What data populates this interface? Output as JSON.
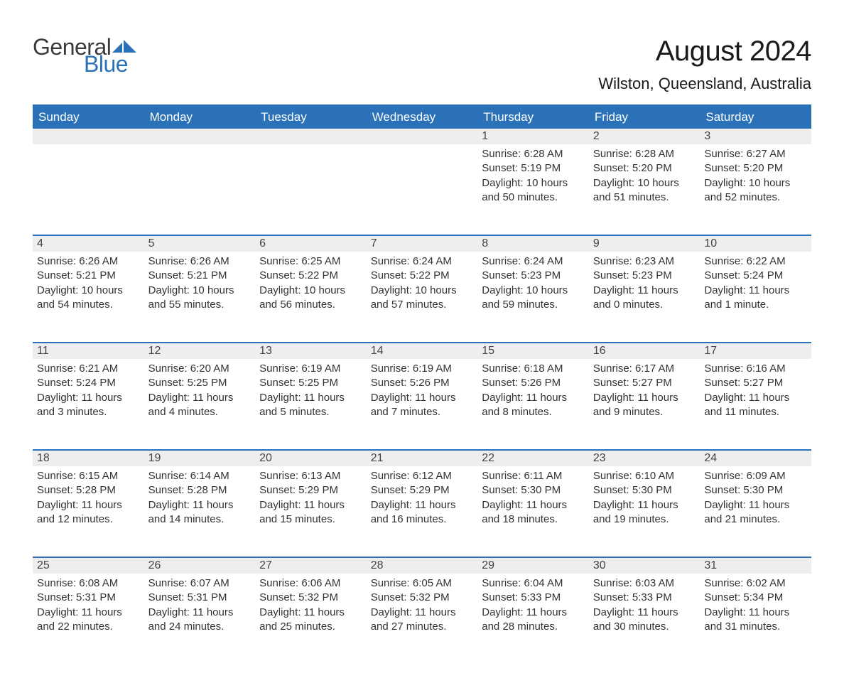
{
  "logo": {
    "word1": "General",
    "word2": "Blue",
    "triangle_color": "#2a71b8"
  },
  "title": "August 2024",
  "location": "Wilston, Queensland, Australia",
  "colors": {
    "header_bg": "#2a71b8",
    "header_text": "#ffffff",
    "daynum_bg": "#eeeeee",
    "row_divider": "#2a71b8",
    "text": "#333333",
    "background": "#ffffff"
  },
  "day_headers": [
    "Sunday",
    "Monday",
    "Tuesday",
    "Wednesday",
    "Thursday",
    "Friday",
    "Saturday"
  ],
  "weeks": [
    [
      null,
      null,
      null,
      null,
      {
        "n": "1",
        "sunrise": "6:28 AM",
        "sunset": "5:19 PM",
        "daylight": "10 hours and 50 minutes."
      },
      {
        "n": "2",
        "sunrise": "6:28 AM",
        "sunset": "5:20 PM",
        "daylight": "10 hours and 51 minutes."
      },
      {
        "n": "3",
        "sunrise": "6:27 AM",
        "sunset": "5:20 PM",
        "daylight": "10 hours and 52 minutes."
      }
    ],
    [
      {
        "n": "4",
        "sunrise": "6:26 AM",
        "sunset": "5:21 PM",
        "daylight": "10 hours and 54 minutes."
      },
      {
        "n": "5",
        "sunrise": "6:26 AM",
        "sunset": "5:21 PM",
        "daylight": "10 hours and 55 minutes."
      },
      {
        "n": "6",
        "sunrise": "6:25 AM",
        "sunset": "5:22 PM",
        "daylight": "10 hours and 56 minutes."
      },
      {
        "n": "7",
        "sunrise": "6:24 AM",
        "sunset": "5:22 PM",
        "daylight": "10 hours and 57 minutes."
      },
      {
        "n": "8",
        "sunrise": "6:24 AM",
        "sunset": "5:23 PM",
        "daylight": "10 hours and 59 minutes."
      },
      {
        "n": "9",
        "sunrise": "6:23 AM",
        "sunset": "5:23 PM",
        "daylight": "11 hours and 0 minutes."
      },
      {
        "n": "10",
        "sunrise": "6:22 AM",
        "sunset": "5:24 PM",
        "daylight": "11 hours and 1 minute."
      }
    ],
    [
      {
        "n": "11",
        "sunrise": "6:21 AM",
        "sunset": "5:24 PM",
        "daylight": "11 hours and 3 minutes."
      },
      {
        "n": "12",
        "sunrise": "6:20 AM",
        "sunset": "5:25 PM",
        "daylight": "11 hours and 4 minutes."
      },
      {
        "n": "13",
        "sunrise": "6:19 AM",
        "sunset": "5:25 PM",
        "daylight": "11 hours and 5 minutes."
      },
      {
        "n": "14",
        "sunrise": "6:19 AM",
        "sunset": "5:26 PM",
        "daylight": "11 hours and 7 minutes."
      },
      {
        "n": "15",
        "sunrise": "6:18 AM",
        "sunset": "5:26 PM",
        "daylight": "11 hours and 8 minutes."
      },
      {
        "n": "16",
        "sunrise": "6:17 AM",
        "sunset": "5:27 PM",
        "daylight": "11 hours and 9 minutes."
      },
      {
        "n": "17",
        "sunrise": "6:16 AM",
        "sunset": "5:27 PM",
        "daylight": "11 hours and 11 minutes."
      }
    ],
    [
      {
        "n": "18",
        "sunrise": "6:15 AM",
        "sunset": "5:28 PM",
        "daylight": "11 hours and 12 minutes."
      },
      {
        "n": "19",
        "sunrise": "6:14 AM",
        "sunset": "5:28 PM",
        "daylight": "11 hours and 14 minutes."
      },
      {
        "n": "20",
        "sunrise": "6:13 AM",
        "sunset": "5:29 PM",
        "daylight": "11 hours and 15 minutes."
      },
      {
        "n": "21",
        "sunrise": "6:12 AM",
        "sunset": "5:29 PM",
        "daylight": "11 hours and 16 minutes."
      },
      {
        "n": "22",
        "sunrise": "6:11 AM",
        "sunset": "5:30 PM",
        "daylight": "11 hours and 18 minutes."
      },
      {
        "n": "23",
        "sunrise": "6:10 AM",
        "sunset": "5:30 PM",
        "daylight": "11 hours and 19 minutes."
      },
      {
        "n": "24",
        "sunrise": "6:09 AM",
        "sunset": "5:30 PM",
        "daylight": "11 hours and 21 minutes."
      }
    ],
    [
      {
        "n": "25",
        "sunrise": "6:08 AM",
        "sunset": "5:31 PM",
        "daylight": "11 hours and 22 minutes."
      },
      {
        "n": "26",
        "sunrise": "6:07 AM",
        "sunset": "5:31 PM",
        "daylight": "11 hours and 24 minutes."
      },
      {
        "n": "27",
        "sunrise": "6:06 AM",
        "sunset": "5:32 PM",
        "daylight": "11 hours and 25 minutes."
      },
      {
        "n": "28",
        "sunrise": "6:05 AM",
        "sunset": "5:32 PM",
        "daylight": "11 hours and 27 minutes."
      },
      {
        "n": "29",
        "sunrise": "6:04 AM",
        "sunset": "5:33 PM",
        "daylight": "11 hours and 28 minutes."
      },
      {
        "n": "30",
        "sunrise": "6:03 AM",
        "sunset": "5:33 PM",
        "daylight": "11 hours and 30 minutes."
      },
      {
        "n": "31",
        "sunrise": "6:02 AM",
        "sunset": "5:34 PM",
        "daylight": "11 hours and 31 minutes."
      }
    ]
  ],
  "labels": {
    "sunrise": "Sunrise: ",
    "sunset": "Sunset: ",
    "daylight": "Daylight: "
  }
}
